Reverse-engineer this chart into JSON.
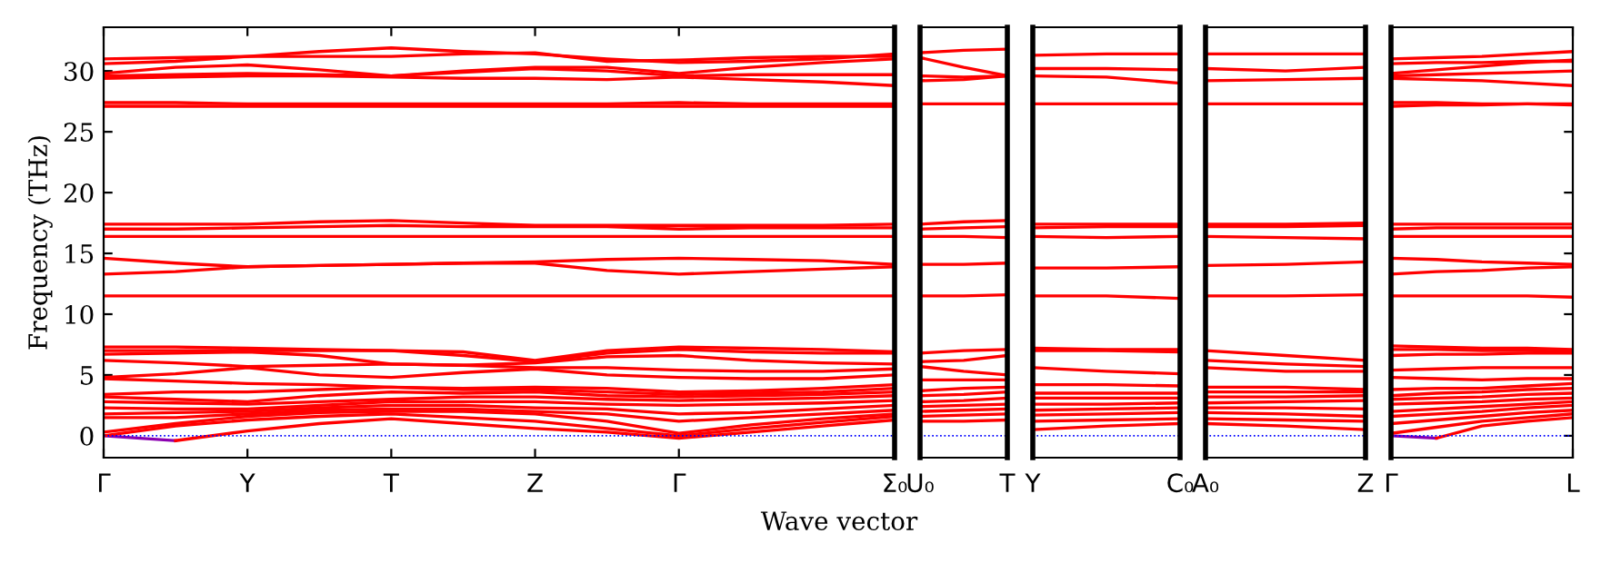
{
  "chart_data": [
    {
      "type": "line",
      "ylabel": "Frequency (THz)",
      "xlabel": "Wave vector",
      "ylim": [
        -1.8,
        33.6
      ],
      "categories": [
        "Γ",
        null,
        "Y",
        null,
        "T",
        null,
        "Z",
        null,
        "Γ",
        null,
        null,
        "Σ₀"
      ],
      "yticks": [
        0,
        5,
        10,
        15,
        20,
        25,
        30
      ],
      "ref_lines": [
        {
          "axis": "y",
          "value": 0,
          "color": "#0000ff",
          "line_style": "dotted"
        }
      ],
      "series": [
        {
          "color": "#8b00b0",
          "values": [
            0,
            -0.4,
            null,
            null,
            null,
            null,
            null,
            null,
            null,
            null,
            null,
            null
          ]
        },
        {
          "color": "#ff0000",
          "values": [
            null,
            -0.4,
            0.4,
            1.0,
            1.4,
            1.0,
            0.6,
            0.3,
            -0.2,
            0.3,
            0.8,
            1.3
          ]
        },
        {
          "color": "#ff0000",
          "values": [
            0,
            0.8,
            1.3,
            1.6,
            1.8,
            1.5,
            1.2,
            0.6,
            0,
            0.6,
            1.1,
            1.6
          ]
        },
        {
          "color": "#ff0000",
          "values": [
            0.3,
            1.0,
            1.6,
            1.9,
            2.0,
            2.0,
            1.8,
            1.2,
            0.2,
            0.9,
            1.4,
            1.8
          ]
        },
        {
          "color": "#ff0000",
          "values": [
            1.5,
            1.5,
            1.8,
            2.1,
            2.2,
            2.2,
            2.0,
            1.8,
            1.2,
            1.5,
            1.8,
            2.1
          ]
        },
        {
          "color": "#ff0000",
          "values": [
            1.8,
            1.9,
            2.0,
            2.3,
            2.5,
            2.5,
            2.3,
            2.2,
            1.8,
            1.9,
            2.2,
            2.5
          ]
        },
        {
          "color": "#ff0000",
          "values": [
            2.3,
            2.2,
            2.2,
            2.5,
            2.8,
            2.8,
            2.8,
            2.6,
            2.5,
            2.6,
            2.7,
            2.9
          ]
        },
        {
          "color": "#ff0000",
          "values": [
            2.8,
            2.7,
            2.6,
            2.8,
            3.0,
            3.2,
            3.2,
            3.0,
            2.9,
            3.0,
            3.1,
            3.3
          ]
        },
        {
          "color": "#ff0000",
          "values": [
            3.2,
            3.0,
            2.8,
            3.3,
            3.6,
            3.5,
            3.6,
            3.3,
            3.2,
            3.3,
            3.4,
            3.6
          ]
        },
        {
          "color": "#ff0000",
          "values": [
            3.4,
            3.6,
            3.6,
            3.8,
            4.0,
            3.8,
            3.8,
            3.6,
            3.4,
            3.5,
            3.6,
            3.9
          ]
        },
        {
          "color": "#ff0000",
          "values": [
            4.7,
            4.5,
            4.3,
            4.2,
            4.0,
            3.9,
            4.0,
            3.9,
            3.6,
            3.7,
            3.9,
            4.2
          ]
        },
        {
          "color": "#ff0000",
          "values": [
            4.8,
            5.1,
            5.6,
            5.0,
            4.8,
            5.2,
            5.5,
            5.0,
            4.8,
            4.7,
            4.7,
            5.0
          ]
        },
        {
          "color": "#ff0000",
          "values": [
            6.2,
            6.0,
            5.7,
            5.8,
            5.9,
            5.8,
            5.6,
            5.6,
            5.4,
            5.3,
            5.3,
            5.5
          ]
        },
        {
          "color": "#ff0000",
          "values": [
            6.7,
            6.8,
            6.9,
            6.6,
            5.9,
            5.8,
            6.0,
            6.5,
            6.6,
            6.2,
            6.0,
            5.9
          ]
        },
        {
          "color": "#ff0000",
          "values": [
            7.0,
            7.0,
            7.0,
            7.0,
            7.0,
            6.6,
            6.1,
            6.8,
            7.1,
            6.9,
            6.8,
            6.8
          ]
        },
        {
          "color": "#ff0000",
          "values": [
            7.3,
            7.3,
            7.2,
            7.1,
            7.0,
            6.9,
            6.2,
            7.0,
            7.3,
            7.2,
            7.1,
            6.9
          ]
        },
        {
          "color": "#ff0000",
          "values": [
            11.5,
            11.5,
            11.5,
            11.5,
            11.5,
            11.5,
            11.5,
            11.5,
            11.5,
            11.5,
            11.5,
            11.5
          ]
        },
        {
          "color": "#ff0000",
          "values": [
            13.3,
            13.5,
            13.9,
            14.0,
            14.1,
            14.2,
            14.2,
            13.6,
            13.3,
            13.5,
            13.7,
            13.9
          ]
        },
        {
          "color": "#ff0000",
          "values": [
            14.6,
            14.2,
            13.9,
            14.0,
            14.1,
            14.2,
            14.3,
            14.5,
            14.6,
            14.5,
            14.4,
            14.1
          ]
        },
        {
          "color": "#ff0000",
          "values": [
            16.4,
            16.4,
            16.4,
            16.4,
            16.4,
            16.4,
            16.4,
            16.4,
            16.4,
            16.4,
            16.4,
            16.4
          ]
        },
        {
          "color": "#ff0000",
          "values": [
            17.0,
            17.0,
            17.1,
            17.2,
            17.3,
            17.2,
            17.2,
            17.2,
            17.0,
            17.1,
            17.1,
            17.1
          ]
        },
        {
          "color": "#ff0000",
          "values": [
            17.4,
            17.4,
            17.4,
            17.6,
            17.7,
            17.5,
            17.3,
            17.3,
            17.3,
            17.3,
            17.3,
            17.4
          ]
        },
        {
          "color": "#ff0000",
          "values": [
            27.1,
            27.1,
            27.1,
            27.1,
            27.1,
            27.1,
            27.1,
            27.1,
            27.1,
            27.1,
            27.1,
            27.1
          ]
        },
        {
          "color": "#ff0000",
          "values": [
            27.4,
            27.4,
            27.3,
            27.3,
            27.3,
            27.3,
            27.3,
            27.3,
            27.4,
            27.3,
            27.3,
            27.3
          ]
        },
        {
          "color": "#ff0000",
          "values": [
            29.4,
            29.5,
            29.6,
            29.6,
            29.5,
            29.4,
            29.4,
            29.3,
            29.5,
            29.3,
            29.1,
            28.8
          ]
        },
        {
          "color": "#ff0000",
          "values": [
            29.6,
            29.7,
            29.8,
            29.7,
            29.6,
            29.9,
            30.2,
            30.0,
            29.6,
            29.7,
            29.7,
            29.7
          ]
        },
        {
          "color": "#ff0000",
          "values": [
            29.8,
            30.3,
            30.5,
            30.1,
            29.6,
            30.0,
            30.3,
            30.3,
            29.8,
            30.3,
            30.7,
            31.0
          ]
        },
        {
          "color": "#ff0000",
          "values": [
            30.6,
            30.8,
            31.2,
            31.6,
            31.9,
            31.6,
            31.4,
            31.0,
            30.7,
            30.8,
            31.0,
            31.4
          ]
        },
        {
          "color": "#ff0000",
          "values": [
            31.0,
            31.1,
            31.2,
            31.2,
            31.2,
            31.4,
            31.5,
            30.8,
            30.9,
            31.1,
            31.2,
            31.2
          ]
        }
      ]
    },
    {
      "type": "line",
      "ylim": [
        -1.8,
        33.6
      ],
      "tick_labels": "x",
      "categories": [
        "U₀",
        null,
        "T"
      ],
      "ref_lines": [
        {
          "axis": "y",
          "value": 0,
          "color": "#0000ff",
          "line_style": "dotted"
        }
      ],
      "series": [
        {
          "color": "#ff0000",
          "values": [
            1.2,
            1.2,
            1.3
          ]
        },
        {
          "color": "#ff0000",
          "values": [
            1.6,
            1.7,
            1.8
          ]
        },
        {
          "color": "#ff0000",
          "values": [
            2.0,
            2.1,
            2.2
          ]
        },
        {
          "color": "#ff0000",
          "values": [
            2.4,
            2.5,
            2.6
          ]
        },
        {
          "color": "#ff0000",
          "values": [
            2.8,
            2.9,
            3.1
          ]
        },
        {
          "color": "#ff0000",
          "values": [
            3.3,
            3.4,
            3.6
          ]
        },
        {
          "color": "#ff0000",
          "values": [
            3.7,
            3.9,
            4.0
          ]
        },
        {
          "color": "#ff0000",
          "values": [
            4.6,
            4.6,
            4.6
          ]
        },
        {
          "color": "#ff0000",
          "values": [
            5.7,
            5.3,
            5.0
          ]
        },
        {
          "color": "#ff0000",
          "values": [
            6.1,
            6.2,
            6.6
          ]
        },
        {
          "color": "#ff0000",
          "values": [
            6.8,
            7.0,
            7.1
          ]
        },
        {
          "color": "#ff0000",
          "values": [
            11.5,
            11.5,
            11.6
          ]
        },
        {
          "color": "#ff0000",
          "values": [
            14.1,
            14.1,
            14.2
          ]
        },
        {
          "color": "#ff0000",
          "values": [
            16.4,
            16.4,
            16.3
          ]
        },
        {
          "color": "#ff0000",
          "values": [
            17.0,
            17.1,
            17.2
          ]
        },
        {
          "color": "#ff0000",
          "values": [
            17.4,
            17.6,
            17.7
          ]
        },
        {
          "color": "#ff0000",
          "values": [
            27.3,
            27.3,
            27.3
          ]
        },
        {
          "color": "#ff0000",
          "values": [
            29.2,
            29.3,
            29.6
          ]
        },
        {
          "color": "#ff0000",
          "values": [
            29.6,
            29.5,
            29.6
          ]
        },
        {
          "color": "#ff0000",
          "values": [
            31.1,
            30.3,
            29.6
          ]
        },
        {
          "color": "#ff0000",
          "values": [
            31.5,
            31.7,
            31.8
          ]
        }
      ]
    },
    {
      "type": "line",
      "ylim": [
        -1.8,
        33.6
      ],
      "tick_labels": "x",
      "categories": [
        "Y",
        null,
        "C₀"
      ],
      "ref_lines": [
        {
          "axis": "y",
          "value": 0,
          "color": "#0000ff",
          "line_style": "dotted"
        }
      ],
      "series": [
        {
          "color": "#ff0000",
          "values": [
            0.5,
            0.8,
            1.0
          ]
        },
        {
          "color": "#ff0000",
          "values": [
            1.2,
            1.3,
            1.4
          ]
        },
        {
          "color": "#ff0000",
          "values": [
            1.7,
            1.8,
            1.9
          ]
        },
        {
          "color": "#ff0000",
          "values": [
            2.1,
            2.2,
            2.3
          ]
        },
        {
          "color": "#ff0000",
          "values": [
            2.6,
            2.6,
            2.7
          ]
        },
        {
          "color": "#ff0000",
          "values": [
            3.1,
            3.1,
            3.1
          ]
        },
        {
          "color": "#ff0000",
          "values": [
            3.5,
            3.5,
            3.5
          ]
        },
        {
          "color": "#ff0000",
          "values": [
            4.2,
            4.2,
            4.1
          ]
        },
        {
          "color": "#ff0000",
          "values": [
            5.6,
            5.3,
            5.1
          ]
        },
        {
          "color": "#ff0000",
          "values": [
            7.0,
            7.0,
            6.9
          ]
        },
        {
          "color": "#ff0000",
          "values": [
            7.2,
            7.1,
            7.1
          ]
        },
        {
          "color": "#ff0000",
          "values": [
            11.5,
            11.5,
            11.3
          ]
        },
        {
          "color": "#ff0000",
          "values": [
            13.8,
            13.8,
            13.9
          ]
        },
        {
          "color": "#ff0000",
          "values": [
            16.4,
            16.3,
            16.4
          ]
        },
        {
          "color": "#ff0000",
          "values": [
            17.1,
            17.2,
            17.2
          ]
        },
        {
          "color": "#ff0000",
          "values": [
            17.4,
            17.4,
            17.4
          ]
        },
        {
          "color": "#ff0000",
          "values": [
            27.3,
            27.3,
            27.3
          ]
        },
        {
          "color": "#ff0000",
          "values": [
            29.6,
            29.5,
            29.0
          ]
        },
        {
          "color": "#ff0000",
          "values": [
            30.2,
            30.2,
            30.1
          ]
        },
        {
          "color": "#ff0000",
          "values": [
            31.3,
            31.4,
            31.4
          ]
        }
      ]
    },
    {
      "type": "line",
      "ylim": [
        -1.8,
        33.6
      ],
      "tick_labels": "x",
      "categories": [
        "A₀",
        null,
        "Z"
      ],
      "ref_lines": [
        {
          "axis": "y",
          "value": 0,
          "color": "#0000ff",
          "line_style": "dotted"
        }
      ],
      "series": [
        {
          "color": "#ff0000",
          "values": [
            1.0,
            0.8,
            0.5
          ]
        },
        {
          "color": "#ff0000",
          "values": [
            1.4,
            1.3,
            1.2
          ]
        },
        {
          "color": "#ff0000",
          "values": [
            1.9,
            1.8,
            1.6
          ]
        },
        {
          "color": "#ff0000",
          "values": [
            2.3,
            2.3,
            2.2
          ]
        },
        {
          "color": "#ff0000",
          "values": [
            2.7,
            2.8,
            2.9
          ]
        },
        {
          "color": "#ff0000",
          "values": [
            3.2,
            3.2,
            3.3
          ]
        },
        {
          "color": "#ff0000",
          "values": [
            3.6,
            3.6,
            3.6
          ]
        },
        {
          "color": "#ff0000",
          "values": [
            4.0,
            4.0,
            3.8
          ]
        },
        {
          "color": "#ff0000",
          "values": [
            5.6,
            5.3,
            5.3
          ]
        },
        {
          "color": "#ff0000",
          "values": [
            6.2,
            5.9,
            5.7
          ]
        },
        {
          "color": "#ff0000",
          "values": [
            7.0,
            6.6,
            6.2
          ]
        },
        {
          "color": "#ff0000",
          "values": [
            11.5,
            11.5,
            11.6
          ]
        },
        {
          "color": "#ff0000",
          "values": [
            14.0,
            14.1,
            14.3
          ]
        },
        {
          "color": "#ff0000",
          "values": [
            16.4,
            16.3,
            16.2
          ]
        },
        {
          "color": "#ff0000",
          "values": [
            17.2,
            17.2,
            17.3
          ]
        },
        {
          "color": "#ff0000",
          "values": [
            17.4,
            17.4,
            17.5
          ]
        },
        {
          "color": "#ff0000",
          "values": [
            27.3,
            27.3,
            27.3
          ]
        },
        {
          "color": "#ff0000",
          "values": [
            29.2,
            29.3,
            29.4
          ]
        },
        {
          "color": "#ff0000",
          "values": [
            30.2,
            30.0,
            30.3
          ]
        },
        {
          "color": "#ff0000",
          "values": [
            31.4,
            31.4,
            31.4
          ]
        }
      ]
    },
    {
      "type": "line",
      "ylim": [
        -1.8,
        33.6
      ],
      "tick_labels": "x",
      "categories": [
        "Γ",
        null,
        null,
        null,
        "L"
      ],
      "yticks": [
        {
          "value": 0,
          "label": null
        },
        {
          "value": 5,
          "label": null
        },
        {
          "value": 10,
          "label": null
        },
        {
          "value": 15,
          "label": null
        },
        {
          "value": 20,
          "label": null
        },
        {
          "value": 25,
          "label": null
        },
        {
          "value": 30,
          "label": null
        }
      ],
      "ref_lines": [
        {
          "axis": "y",
          "value": 0,
          "color": "#0000ff",
          "line_style": "dotted"
        }
      ],
      "series": [
        {
          "color": "#8b00b0",
          "values": [
            0,
            -0.2,
            null,
            null,
            null
          ]
        },
        {
          "color": "#ff0000",
          "values": [
            null,
            -0.2,
            0.8,
            1.2,
            1.5
          ]
        },
        {
          "color": "#ff0000",
          "values": [
            0.2,
            0.7,
            1.2,
            1.5,
            1.8
          ]
        },
        {
          "color": "#ff0000",
          "values": [
            1.0,
            1.3,
            1.6,
            1.9,
            2.1
          ]
        },
        {
          "color": "#ff0000",
          "values": [
            1.6,
            1.8,
            2.0,
            2.3,
            2.5
          ]
        },
        {
          "color": "#ff0000",
          "values": [
            2.0,
            2.2,
            2.4,
            2.6,
            2.8
          ]
        },
        {
          "color": "#ff0000",
          "values": [
            2.6,
            2.7,
            2.8,
            3.0,
            3.1
          ]
        },
        {
          "color": "#ff0000",
          "values": [
            3.0,
            3.1,
            3.2,
            3.4,
            3.5
          ]
        },
        {
          "color": "#ff0000",
          "values": [
            3.3,
            3.5,
            3.6,
            3.8,
            3.9
          ]
        },
        {
          "color": "#ff0000",
          "values": [
            3.8,
            3.9,
            3.9,
            4.1,
            4.3
          ]
        },
        {
          "color": "#ff0000",
          "values": [
            4.8,
            4.7,
            4.6,
            4.7,
            4.7
          ]
        },
        {
          "color": "#ff0000",
          "values": [
            5.4,
            5.5,
            5.6,
            5.6,
            5.6
          ]
        },
        {
          "color": "#ff0000",
          "values": [
            6.6,
            6.7,
            6.7,
            6.8,
            6.8
          ]
        },
        {
          "color": "#ff0000",
          "values": [
            7.1,
            7.1,
            7.0,
            7.0,
            6.9
          ]
        },
        {
          "color": "#ff0000",
          "values": [
            7.4,
            7.3,
            7.2,
            7.2,
            7.1
          ]
        },
        {
          "color": "#ff0000",
          "values": [
            11.5,
            11.5,
            11.5,
            11.5,
            11.4
          ]
        },
        {
          "color": "#ff0000",
          "values": [
            13.3,
            13.5,
            13.6,
            13.8,
            13.9
          ]
        },
        {
          "color": "#ff0000",
          "values": [
            14.6,
            14.5,
            14.3,
            14.2,
            14.1
          ]
        },
        {
          "color": "#ff0000",
          "values": [
            16.4,
            16.4,
            16.4,
            16.4,
            16.4
          ]
        },
        {
          "color": "#ff0000",
          "values": [
            17.0,
            17.1,
            17.1,
            17.1,
            17.1
          ]
        },
        {
          "color": "#ff0000",
          "values": [
            17.4,
            17.4,
            17.4,
            17.4,
            17.4
          ]
        },
        {
          "color": "#ff0000",
          "values": [
            27.1,
            27.2,
            27.2,
            27.3,
            27.3
          ]
        },
        {
          "color": "#ff0000",
          "values": [
            27.4,
            27.4,
            27.3,
            27.3,
            27.2
          ]
        },
        {
          "color": "#ff0000",
          "values": [
            29.4,
            29.3,
            29.2,
            29.0,
            28.8
          ]
        },
        {
          "color": "#ff0000",
          "values": [
            29.6,
            29.7,
            29.8,
            29.9,
            30.0
          ]
        },
        {
          "color": "#ff0000",
          "values": [
            29.8,
            30.1,
            30.4,
            30.7,
            30.9
          ]
        },
        {
          "color": "#ff0000",
          "values": [
            30.6,
            30.7,
            30.7,
            30.8,
            30.8
          ]
        },
        {
          "color": "#ff0000",
          "values": [
            31.0,
            31.1,
            31.2,
            31.4,
            31.6
          ]
        }
      ]
    }
  ]
}
